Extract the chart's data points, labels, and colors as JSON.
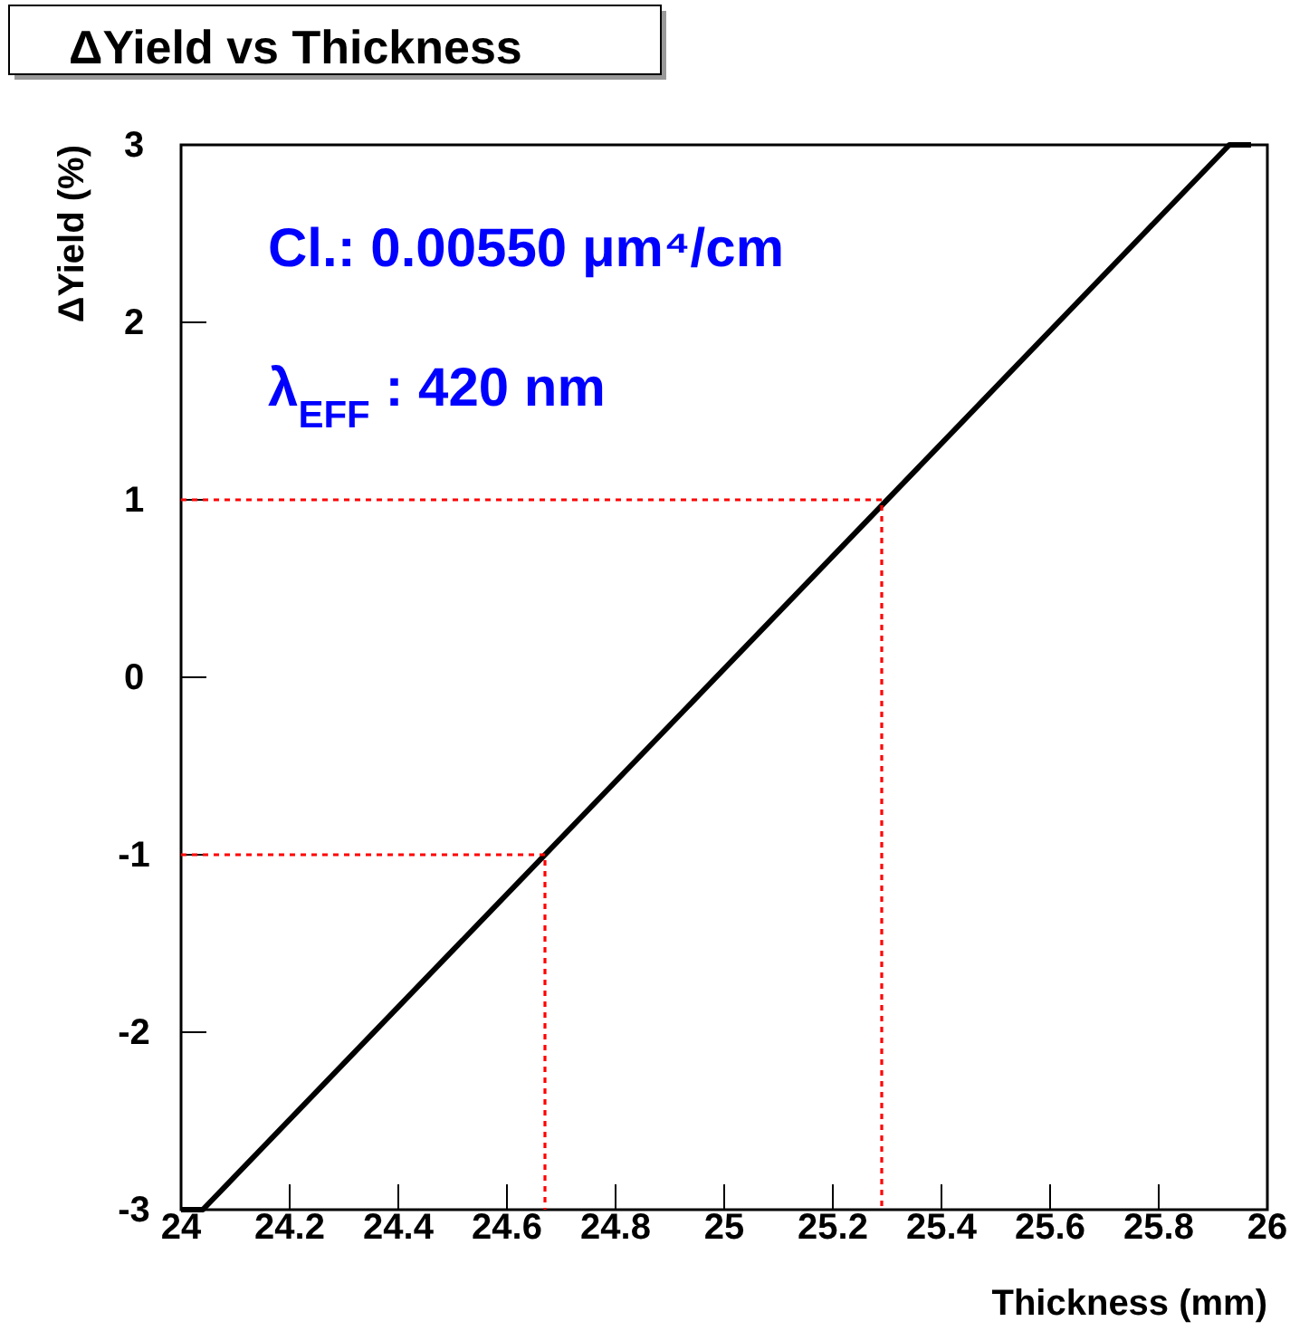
{
  "chart_data": {
    "type": "line",
    "title": "ΔYield vs Thickness",
    "xlabel": "Thickness (mm)",
    "ylabel": "ΔYield (%)",
    "annotations": [
      "Cl.: 0.00550 μm⁴/cm",
      "λ$_{EFF}$ : 420 nm"
    ],
    "xlim": [
      24,
      26
    ],
    "xticks": [
      24,
      24.2,
      24.4,
      24.6,
      24.8,
      25,
      25.2,
      25.4,
      25.6,
      25.8,
      26
    ],
    "ylim": [
      -3,
      3
    ],
    "yticks": [
      -3,
      -2,
      -1,
      0,
      1,
      2,
      3
    ],
    "series": [
      {
        "color": "#000000",
        "line_style": "solid",
        "x": [
          24.0,
          24.04,
          25.93,
          25.97
        ],
        "values": [
          -3,
          -3,
          3,
          3
        ]
      },
      {
        "color": "#ff0000",
        "line_style": "dotted",
        "x": [
          24,
          24.67,
          24.67
        ],
        "values": [
          -1,
          -1,
          -3
        ]
      },
      {
        "color": "#ff0000",
        "line_style": "dotted",
        "x": [
          24,
          25.29,
          25.29
        ],
        "values": [
          1,
          1,
          -3
        ]
      }
    ]
  }
}
